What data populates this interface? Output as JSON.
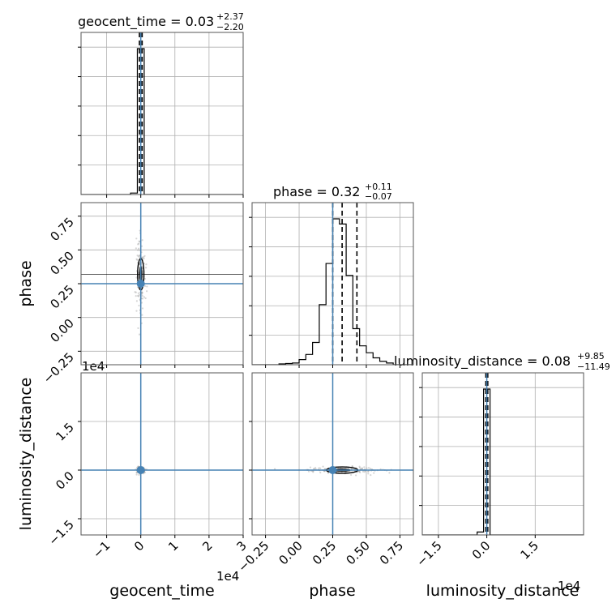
{
  "chart_data": {
    "type": "corner",
    "parameters": [
      "geocent_time",
      "phase",
      "luminosity_distance"
    ],
    "titles": [
      {
        "parameter": "geocent_time",
        "prefix": "geocent_time = ",
        "median": "0.03",
        "plus": "+2.37",
        "minus": "−2.20"
      },
      {
        "parameter": "phase",
        "prefix": "phase = ",
        "median": "0.32",
        "plus": "+0.11",
        "minus": "−0.07"
      },
      {
        "parameter": "luminosity_distance",
        "prefix": "luminosity_distance = ",
        "median": "0.08",
        "plus": "+9.85",
        "minus": "−11.49"
      }
    ],
    "axis_labels": {
      "x": [
        "geocent_time",
        "phase",
        "luminosity_distance"
      ],
      "y": [
        "phase",
        "luminosity_distance"
      ]
    },
    "offset_texts": {
      "geocent_time_x": "1e4",
      "luminosity_distance_x": "1e4",
      "luminosity_distance_y": "1e4"
    },
    "ranges": {
      "geocent_time": [
        -1.75,
        3.0
      ],
      "phase": [
        -0.35,
        0.85
      ],
      "luminosity_distance": [
        -2.0,
        3.0
      ]
    },
    "ticks": {
      "geocent_time": {
        "values": [
          -1,
          0,
          1,
          2,
          3
        ],
        "labels": [
          "−1",
          "0",
          "1",
          "2",
          "3"
        ]
      },
      "phase": {
        "values": [
          -0.25,
          0.0,
          0.25,
          0.5,
          0.75
        ],
        "labels": [
          "−0.25",
          "0.00",
          "0.25",
          "0.50",
          "0.75"
        ]
      },
      "luminosity_distance": {
        "values": [
          -1.5,
          0.0,
          1.5
        ],
        "labels": [
          "−1.5",
          "0.0",
          "1.5"
        ]
      }
    },
    "truths": {
      "geocent_time": 0.0,
      "phase": 0.25,
      "luminosity_distance": 0.0
    },
    "truth_color": "#4682b4",
    "quantiles": {
      "geocent_time": [
        -0.04,
        0.0,
        0.04
      ],
      "phase": [
        0.25,
        0.32,
        0.43
      ],
      "luminosity_distance": [
        -0.03,
        0.0,
        0.03
      ]
    },
    "histograms": {
      "geocent_time": {
        "edges": [
          -0.3,
          -0.1,
          0.1,
          0.3
        ],
        "counts": [
          1,
          100,
          0
        ]
      },
      "phase": {
        "edges": [
          -0.35,
          -0.3,
          -0.25,
          -0.2,
          -0.15,
          -0.1,
          -0.05,
          0.0,
          0.05,
          0.1,
          0.15,
          0.2,
          0.25,
          0.3,
          0.35,
          0.4,
          0.45,
          0.5,
          0.55,
          0.6,
          0.65,
          0.7,
          0.75,
          0.8
        ],
        "counts": [
          0,
          0,
          0,
          0,
          0.5,
          0.7,
          1,
          3,
          6,
          13,
          35,
          59,
          85,
          82,
          52,
          21,
          11,
          7,
          4,
          2,
          1,
          0,
          0
        ]
      },
      "luminosity_distance": {
        "edges": [
          -0.3,
          -0.1,
          0.1,
          0.3
        ],
        "counts": [
          2,
          100,
          0
        ]
      }
    },
    "grid": true
  }
}
